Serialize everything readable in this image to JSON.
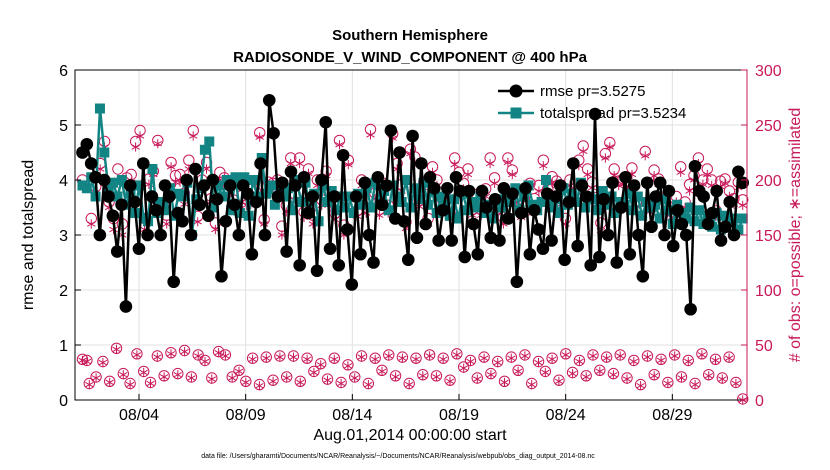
{
  "chart_data": {
    "type": "line",
    "title": "Southern Hemisphere",
    "subtitle": "RADIOSONDE_V_WIND_COMPONENT @ 400 hPa",
    "xlabel": "Aug.01,2014 00:00:00 start",
    "ylabel": "rmse and totalspread",
    "y2label": "# of obs: o=possible; ∗=assimilated",
    "xlim": [
      0.5,
      32.0
    ],
    "ylim": [
      0,
      6
    ],
    "y2lim": [
      0,
      300
    ],
    "x_ticks": [
      3.5,
      8.5,
      13.5,
      18.5,
      23.5,
      28.5
    ],
    "x_tick_labels": [
      "08/04",
      "08/09",
      "08/14",
      "08/19",
      "08/24",
      "08/29"
    ],
    "y_ticks": [
      0,
      1,
      2,
      3,
      4,
      5,
      6
    ],
    "y2_ticks": [
      0,
      50,
      100,
      150,
      200,
      250,
      300
    ],
    "grid": true,
    "legend_position": "top-right",
    "colors": {
      "rmse": "#000000",
      "totalspread": "#138484",
      "obs": "#c8195a"
    },
    "series": [
      {
        "name": "rmse",
        "legend": "rmse pr=3.5275",
        "axis": "left",
        "values": [
          4.5,
          4.65,
          4.3,
          4.05,
          3.0,
          4.0,
          3.7,
          3.35,
          2.7,
          3.55,
          1.7,
          3.9,
          3.6,
          2.75,
          4.3,
          3.0,
          3.7,
          3.45,
          3.0,
          3.9,
          3.7,
          2.15,
          3.4,
          3.25,
          4.0,
          3.0,
          4.2,
          3.55,
          3.9,
          3.35,
          4.0,
          3.65,
          2.25,
          3.25,
          3.9,
          3.55,
          3.0,
          3.9,
          3.75,
          2.65,
          3.6,
          4.3,
          3.0,
          5.45,
          4.85,
          3.7,
          3.95,
          2.7,
          4.15,
          3.9,
          2.45,
          4.05,
          3.4,
          3.7,
          2.35,
          4.0,
          5.05,
          2.75,
          3.7,
          2.45,
          4.45,
          3.1,
          2.1,
          3.7,
          2.65,
          3.95,
          3.0,
          2.5,
          4.05,
          3.55,
          3.9,
          4.9,
          3.3,
          4.5,
          3.25,
          2.55,
          4.8,
          2.95,
          4.3,
          3.2,
          4.05,
          3.85,
          2.9,
          3.45,
          3.85,
          2.9,
          4.05,
          3.8,
          2.6,
          3.8,
          3.2,
          2.65,
          3.8,
          3.5,
          2.95,
          3.65,
          2.9,
          3.85,
          3.3,
          3.75,
          2.15,
          3.4,
          3.85,
          2.65,
          3.45,
          3.1,
          2.75,
          3.75,
          2.9,
          3.7,
          3.9,
          2.55,
          3.6,
          4.3,
          2.8,
          3.9,
          3.7,
          2.45,
          5.2,
          2.6,
          3.65,
          3.0,
          3.95,
          2.5,
          3.5,
          4.05,
          2.65,
          3.9,
          3.0,
          2.25,
          3.95,
          3.15,
          3.7,
          3.95,
          3.0,
          3.8,
          2.8,
          3.45,
          3.2,
          3.0,
          1.65,
          4.25,
          3.8,
          3.7,
          3.2,
          3.4,
          3.8,
          2.9,
          3.15,
          3.6,
          3.0,
          4.15,
          3.95
        ]
      },
      {
        "name": "totalspread",
        "legend": "totalspread pr=3.5234",
        "axis": "left",
        "values": [
          3.9,
          3.85,
          4.05,
          3.7,
          5.3,
          4.5,
          3.8,
          3.95,
          3.7,
          4.0,
          3.55,
          3.75,
          3.4,
          3.9,
          3.3,
          3.25,
          4.2,
          3.4,
          3.6,
          3.45,
          3.85,
          3.35,
          3.75,
          3.7,
          3.95,
          3.0,
          3.65,
          3.85,
          4.55,
          4.7,
          3.5,
          3.9,
          3.7,
          4.0,
          3.45,
          4.05,
          3.4,
          4.05,
          3.35,
          4.0,
          3.7,
          4.4,
          3.75,
          3.9,
          3.55,
          3.9,
          3.7,
          3.85,
          3.45,
          4.0,
          3.6,
          3.95,
          3.4,
          3.75,
          3.25,
          3.9,
          3.6,
          3.8,
          3.45,
          3.7,
          3.5,
          3.7,
          3.4,
          3.75,
          3.55,
          3.85,
          3.5,
          3.95,
          3.6,
          3.8,
          3.45,
          3.9,
          3.7,
          3.6,
          4.0,
          3.5,
          3.85,
          3.65,
          3.95,
          3.55,
          3.8,
          3.4,
          3.7,
          3.55,
          3.35,
          3.65,
          3.3,
          3.75,
          3.45,
          3.6,
          3.5,
          3.7,
          3.4,
          3.55,
          3.3,
          3.65,
          3.5,
          3.75,
          3.6,
          3.85,
          3.45,
          3.7,
          3.9,
          3.55,
          3.45,
          3.6,
          4.0,
          3.5,
          3.65,
          3.4,
          3.85,
          3.55,
          3.75,
          3.6,
          3.95,
          3.5,
          3.7,
          3.65,
          3.45,
          3.8,
          3.55,
          3.7,
          3.4,
          3.6,
          3.55,
          3.75,
          3.45,
          3.7,
          3.35,
          3.6,
          3.5,
          3.55,
          3.3,
          3.65,
          3.45,
          3.2,
          3.55,
          3.4,
          3.3,
          3.5,
          3.25,
          3.45,
          3.2,
          3.35,
          3.15,
          3.4,
          3.1,
          3.35,
          3.25,
          3.3,
          3.1,
          3.3
        ]
      },
      {
        "name": "obs_possible",
        "axis": "right",
        "values": [
          200,
          36,
          165,
          194,
          215,
          235,
          180,
          165,
          210,
          160,
          202,
          205,
          235,
          245,
          165,
          201,
          208,
          236,
          176,
          168,
          216,
          204,
          205,
          188,
          218,
          245,
          167,
          200,
          216,
          183,
          161,
          207,
          202,
          192,
          182,
          174,
          186,
          183,
          182,
          190,
          243,
          164,
          198,
          197,
          200,
          158,
          177,
          220,
          187,
          220,
          171,
          210,
          168,
          200,
          182,
          208,
          183,
          170,
          236,
          159,
          218,
          176,
          172,
          200,
          175,
          246,
          188,
          173,
          197,
          177,
          242,
          215,
          196,
          162,
          228,
          221,
          181,
          198,
          165,
          212,
          200,
          184,
          181,
          169,
          220,
          207,
          197,
          210,
          173,
          187,
          173,
          192,
          220,
          202,
          178,
          166,
          220,
          209,
          184,
          171,
          176,
          197,
          183,
          195,
          218,
          192,
          203,
          199,
          183,
          165,
          200,
          188,
          218,
          231,
          210,
          198,
          184,
          161,
          224,
          234,
          210,
          199,
          201,
          197,
          211,
          180,
          172,
          226,
          177,
          209,
          201,
          190,
          177,
          171,
          185,
          212,
          180,
          196,
          204,
          220,
          200,
          210,
          200,
          172,
          199,
          201,
          190,
          183,
          198,
          182
        ]
      },
      {
        "name": "obs_assimilated",
        "axis": "right",
        "values": [
          195,
          35,
          160,
          185,
          210,
          230,
          175,
          155,
          200,
          150,
          195,
          198,
          230,
          240,
          155,
          196,
          205,
          233,
          171,
          160,
          212,
          198,
          198,
          178,
          210,
          240,
          162,
          195,
          210,
          180,
          155,
          200,
          195,
          186,
          177,
          170,
          180,
          177,
          178,
          184,
          239,
          160,
          193,
          192,
          195,
          150,
          171,
          215,
          182,
          215,
          166,
          206,
          160,
          195,
          177,
          204,
          178,
          164,
          232,
          150,
          214,
          170,
          167,
          195,
          170,
          241,
          183,
          168,
          190,
          170,
          238,
          210,
          190,
          156,
          224,
          216,
          176,
          193,
          160,
          207,
          195,
          178,
          175,
          165,
          214,
          202,
          192,
          205,
          168,
          181,
          168,
          185,
          215,
          197,
          173,
          160,
          216,
          205,
          180,
          166,
          170,
          193,
          176,
          190,
          213,
          186,
          197,
          195,
          178,
          160,
          195,
          183,
          213,
          226,
          205,
          193,
          178,
          154,
          220,
          230,
          204,
          195,
          196,
          191,
          205,
          176,
          167,
          222,
          171,
          204,
          196,
          185,
          170,
          166,
          180,
          207,
          175,
          190,
          200,
          215,
          196,
          205,
          195,
          167,
          194,
          197,
          185,
          178,
          193,
          177
        ]
      },
      {
        "name": "obs_low_possible",
        "axis": "right",
        "values": [
          37,
          15,
          21,
          35,
          17,
          47,
          24,
          15,
          42,
          26,
          16,
          40,
          22,
          43,
          24,
          45,
          21,
          41,
          36,
          20,
          44,
          41,
          21,
          27,
          17,
          38,
          14,
          39,
          18,
          40,
          21,
          40,
          17,
          38,
          26,
          33,
          19,
          38,
          16,
          32,
          21,
          40,
          15,
          38,
          27,
          41,
          22,
          39,
          15,
          38,
          23,
          41,
          22,
          38,
          18,
          42,
          30,
          36,
          20,
          39,
          24,
          35,
          17,
          39,
          27,
          41,
          15,
          35,
          26,
          38,
          18,
          42,
          25,
          36,
          22,
          41,
          27,
          39,
          24,
          41,
          20,
          36,
          14,
          40,
          23,
          37,
          16,
          41,
          21,
          36,
          15,
          42,
          23,
          37,
          20,
          39,
          16,
          1
        ]
      },
      {
        "name": "obs_low_assimilated",
        "axis": "right",
        "values": [
          36,
          14,
          20,
          34,
          16,
          46,
          23,
          14,
          41,
          25,
          15,
          39,
          21,
          42,
          23,
          44,
          20,
          40,
          35,
          19,
          43,
          40,
          20,
          26,
          16,
          37,
          13,
          38,
          17,
          39,
          20,
          39,
          16,
          37,
          25,
          32,
          18,
          37,
          15,
          31,
          20,
          39,
          14,
          37,
          26,
          40,
          21,
          38,
          14,
          37,
          22,
          40,
          21,
          37,
          17,
          41,
          29,
          35,
          19,
          38,
          23,
          34,
          16,
          38,
          26,
          40,
          14,
          34,
          25,
          37,
          17,
          41,
          24,
          35,
          21,
          40,
          26,
          38,
          23,
          40,
          19,
          35,
          13,
          39,
          22,
          36,
          15,
          40,
          20,
          35,
          14,
          41,
          22,
          36,
          19,
          38,
          15,
          0
        ]
      }
    ],
    "footer": "data file: /Users/gharamti/Documents/NCAR/Reanalysis/~/Documents/NCAR/Reanalysis/webpub/obs_diag_output_2014-08.nc"
  }
}
